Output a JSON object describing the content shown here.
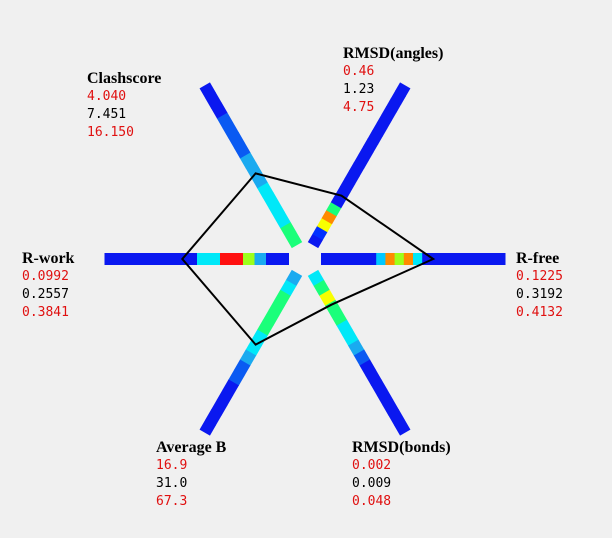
{
  "chart_data": {
    "type": "radar",
    "axes": [
      {
        "name": "R-free",
        "low": "0.1225",
        "value": "0.3192",
        "high": "0.4132",
        "colors": [
          "blue",
          "blue",
          "blue",
          "blue",
          "blue",
          "blue",
          "cyanblue",
          "orange",
          "lime",
          "orange",
          "cyan",
          "blue",
          "blue",
          "blue",
          "blue",
          "blue",
          "blue",
          "blue",
          "blue",
          "blue"
        ],
        "polygon_fraction": 0.61
      },
      {
        "name": "RMSD(angles)",
        "low": "0.46",
        "value": "1.23",
        "high": "4.75",
        "colors": [
          "blue",
          "deepblue",
          "yellow",
          "orange",
          "green",
          "blue",
          "blue",
          "blue",
          "blue",
          "blue",
          "blue",
          "blue",
          "blue",
          "blue",
          "blue",
          "blue",
          "blue",
          "blue",
          "blue",
          "blue"
        ],
        "polygon_fraction": 0.31
      },
      {
        "name": "Clashscore",
        "low": "4.040",
        "value": "7.451",
        "high": "16.150",
        "colors": [
          "green",
          "green",
          "cyan",
          "cyan",
          "cyan",
          "cyan",
          "skyblue",
          "skyblue",
          "skyblue",
          "azure",
          "azure",
          "azure",
          "azure",
          "blue",
          "blue",
          "blue"
        ],
        "polygon_fraction": 0.45
      },
      {
        "name": "R-work",
        "low": "0.0992",
        "value": "0.2557",
        "high": "0.3841",
        "colors": [
          "blue",
          "blue",
          "skyblue",
          "lime",
          "red",
          "red",
          "cyan",
          "cyan",
          "blue",
          "blue",
          "blue",
          "blue",
          "blue",
          "blue",
          "blue",
          "blue"
        ],
        "polygon_fraction": 0.58
      },
      {
        "name": "Average B",
        "low": "16.9",
        "value": "31.0",
        "high": "67.3",
        "colors": [
          "skyblue",
          "cyan",
          "green",
          "green",
          "green",
          "green",
          "cyan",
          "cyan",
          "skyblue",
          "azure",
          "azure",
          "blue",
          "blue",
          "blue",
          "blue",
          "blue"
        ],
        "polygon_fraction": 0.45
      },
      {
        "name": "RMSD(bonds)",
        "low": "0.002",
        "value": "0.009",
        "high": "0.048",
        "colors": [
          "cyan",
          "green",
          "yellow",
          "green",
          "green",
          "cyan",
          "cyan",
          "skyblue",
          "azure",
          "blue",
          "blue",
          "blue",
          "blue",
          "blue",
          "blue",
          "blue"
        ],
        "polygon_fraction": 0.2
      }
    ],
    "palette": {
      "blue": "#0a18f0",
      "deepblue": "#0030ff",
      "azure": "#0a5af2",
      "skyblue": "#1aaaf0",
      "cyan": "#00e8f8",
      "cyanblue": "#00c8ff",
      "green": "#1aff7a",
      "lime": "#9cff1a",
      "yellow": "#f8ff00",
      "orange": "#ff8a00",
      "red": "#ff1010"
    },
    "polygon_color": "#000000"
  }
}
